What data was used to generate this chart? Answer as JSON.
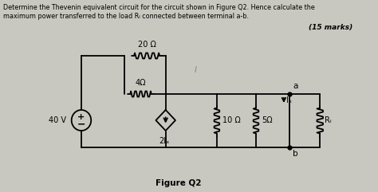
{
  "title_line1": "Determine the Thevenin equivalent circuit for the circuit shown in Figure Q2. Hence calculate the",
  "title_line2": "maximum power transferred to the load Rₗ connected between terminal a-b.",
  "marks": "(15 marks)",
  "figure_label": "Figure Q2",
  "bg_color": "#c8c8c0",
  "resistor_20": "20 Ω",
  "resistor_4": "4Ω",
  "resistor_10": "10 Ω",
  "resistor_5": "5Ω",
  "resistor_RL": "Rₗ",
  "source_40": "40 V",
  "current_source_label": "2Iₓ",
  "ix_label": "Iₓ",
  "I_label": "I"
}
